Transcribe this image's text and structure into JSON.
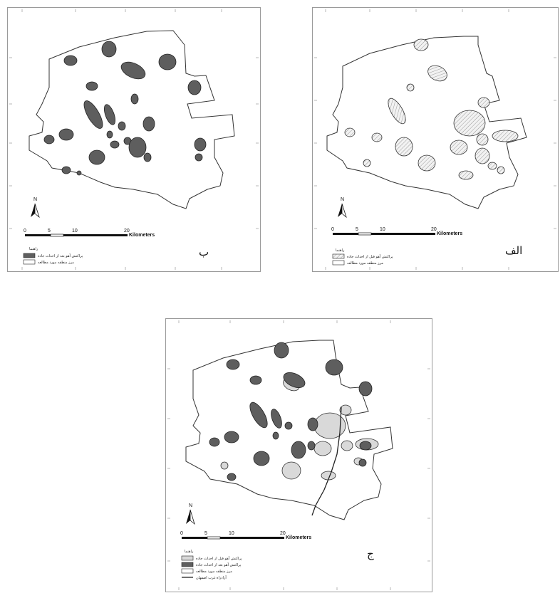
{
  "panels": [
    {
      "id": "b",
      "letter": "ب",
      "scale": {
        "labels": [
          "0",
          "5",
          "10",
          "20"
        ],
        "unit": "Kilometers"
      },
      "north": "N",
      "legend": {
        "title": "راهنما",
        "items": [
          {
            "label": "پراکنش آهو بعد از احداث جاده",
            "swatch": "dark"
          },
          {
            "label": "مرز منطقه مورد مطالعه",
            "swatch": "empty"
          }
        ]
      }
    },
    {
      "id": "alef",
      "letter": "الف",
      "scale": {
        "labels": [
          "0",
          "5",
          "10",
          "20"
        ],
        "unit": "Kilometers"
      },
      "north": "N",
      "legend": {
        "title": "راهنما",
        "items": [
          {
            "label": "پراکنش آهو قبل از احداث جاده",
            "swatch": "hatch"
          },
          {
            "label": "مرز منطقه مورد مطالعه",
            "swatch": "empty"
          }
        ]
      }
    },
    {
      "id": "jim",
      "letter": "ج",
      "scale": {
        "labels": [
          "0",
          "5",
          "10",
          "20"
        ],
        "unit": "Kilometers"
      },
      "north": "N",
      "legend": {
        "title": "راهنما",
        "items": [
          {
            "label": "پراکنش آهو قبل از احداث جاده",
            "swatch": "light"
          },
          {
            "label": "پراکنش آهو بعد از احداث جاده",
            "swatch": "dark"
          },
          {
            "label": "مرز منطقه مورد مطالعه",
            "swatch": "empty"
          },
          {
            "label": "آزادراه غرب اصفهان",
            "swatch": "line"
          }
        ]
      }
    }
  ],
  "colors": {
    "dark_patch": "#5e5e5e",
    "light_patch": "#d9d9d9",
    "hatch_fill": "#f2f2f2",
    "hatch_line": "#9a9a9a",
    "boundary": "#333333",
    "road": "#222222"
  }
}
